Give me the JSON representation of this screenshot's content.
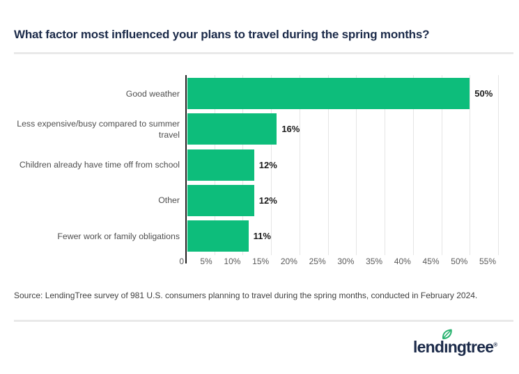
{
  "title": "What factor most influenced your plans to travel during the spring months?",
  "chart_data": {
    "type": "bar",
    "orientation": "horizontal",
    "categories": [
      "Good weather",
      "Less expensive/busy compared to summer travel",
      "Children already have time off from school",
      "Other",
      "Fewer work or family obligations"
    ],
    "values": [
      50,
      16,
      12,
      12,
      11
    ],
    "value_labels": [
      "50%",
      "16%",
      "12%",
      "12%",
      "11%"
    ],
    "xlim": [
      0,
      55
    ],
    "x_ticks": [
      {
        "value": 0,
        "label": "0"
      },
      {
        "value": 5,
        "label": "5%"
      },
      {
        "value": 10,
        "label": "10%"
      },
      {
        "value": 15,
        "label": "15%"
      },
      {
        "value": 20,
        "label": "20%"
      },
      {
        "value": 25,
        "label": "25%"
      },
      {
        "value": 30,
        "label": "30%"
      },
      {
        "value": 35,
        "label": "35%"
      },
      {
        "value": 40,
        "label": "40%"
      },
      {
        "value": 45,
        "label": "45%"
      },
      {
        "value": 50,
        "label": "50%"
      },
      {
        "value": 55,
        "label": "55%"
      }
    ],
    "grid": "vertical",
    "legend": false,
    "bar_color": "#0dbd7b",
    "axis_color": "#1f1f1f",
    "gridline_color": "#e5e5e5"
  },
  "source_note": "Source: LendingTree survey of 981 U.S. consumers planning to travel during the spring months, conducted in February 2024.",
  "logo": {
    "part1": "lend",
    "dotless_i": "ı",
    "part2": "ngtree",
    "trademark": "®",
    "text_color": "#1b2a49",
    "leaf_color": "#27b26e"
  },
  "colors": {
    "title": "#1b2a49",
    "category_label": "#4e4e4e",
    "value_label": "#1b1b1b",
    "tick_label": "#595959",
    "divider": "#e9e9e9",
    "background": "#ffffff"
  }
}
